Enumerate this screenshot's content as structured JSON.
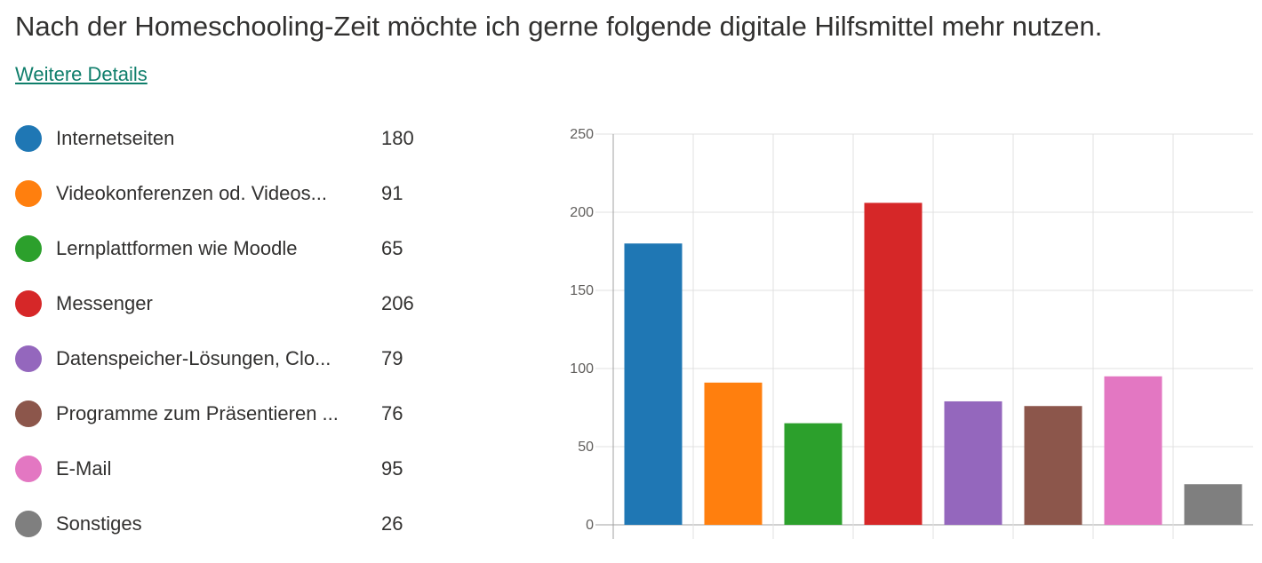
{
  "header": {
    "title": "Nach der Homeschooling-Zeit möchte ich gerne folgende digitale Hilfsmittel mehr nutzen.",
    "details_link": "Weitere Details"
  },
  "legend": [
    {
      "label": "Internetseiten",
      "value": "180",
      "color": "#1f77b4"
    },
    {
      "label": "Videokonferenzen od. Videos...",
      "value": "91",
      "color": "#ff7f0e"
    },
    {
      "label": "Lernplattformen wie Moodle",
      "value": "65",
      "color": "#2ca02c"
    },
    {
      "label": "Messenger",
      "value": "206",
      "color": "#d62728"
    },
    {
      "label": "Datenspeicher-Lösungen, Clo...",
      "value": "79",
      "color": "#9467bd"
    },
    {
      "label": "Programme zum Präsentieren ...",
      "value": "76",
      "color": "#8c564b"
    },
    {
      "label": "E-Mail",
      "value": "95",
      "color": "#e377c2"
    },
    {
      "label": "Sonstiges",
      "value": "26",
      "color": "#7f7f7f"
    }
  ],
  "chart_data": {
    "type": "bar",
    "categories": [
      "Internetseiten",
      "Videokonferenzen od. Videos...",
      "Lernplattformen wie Moodle",
      "Messenger",
      "Datenspeicher-Lösungen, Clo...",
      "Programme zum Präsentieren ...",
      "E-Mail",
      "Sonstiges"
    ],
    "values": [
      180,
      91,
      65,
      206,
      79,
      76,
      95,
      26
    ],
    "colors": [
      "#1f77b4",
      "#ff7f0e",
      "#2ca02c",
      "#d62728",
      "#9467bd",
      "#8c564b",
      "#e377c2",
      "#7f7f7f"
    ],
    "ylim": [
      0,
      250
    ],
    "yticks": [
      "0",
      "50",
      "100",
      "150",
      "200",
      "250"
    ],
    "grid": true,
    "legend_position": "left"
  }
}
